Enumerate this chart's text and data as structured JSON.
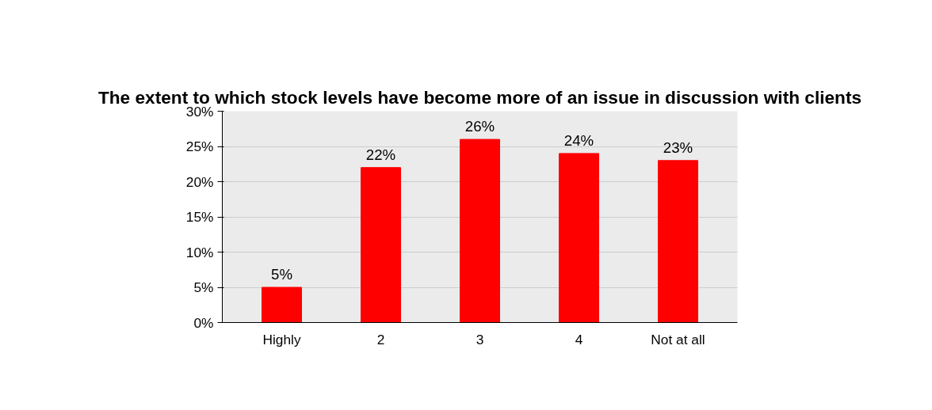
{
  "chart_data": {
    "type": "bar",
    "title": "The extent to which stock levels have become more of an issue in discussion with clients",
    "categories": [
      "Highly",
      "2",
      "3",
      "4",
      "Not at all"
    ],
    "values": [
      5,
      22,
      26,
      24,
      23
    ],
    "value_labels": [
      "5%",
      "22%",
      "26%",
      "24%",
      "23%"
    ],
    "color": "#ff0000",
    "ylim": [
      0,
      30
    ],
    "yticks": [
      {
        "value": 0,
        "label": "0%"
      },
      {
        "value": 5,
        "label": "5%"
      },
      {
        "value": 10,
        "label": "10%"
      },
      {
        "value": 15,
        "label": "15%"
      },
      {
        "value": 20,
        "label": "20%"
      },
      {
        "value": 25,
        "label": "25%"
      },
      {
        "value": 30,
        "label": "30%"
      }
    ],
    "grid": "y"
  }
}
